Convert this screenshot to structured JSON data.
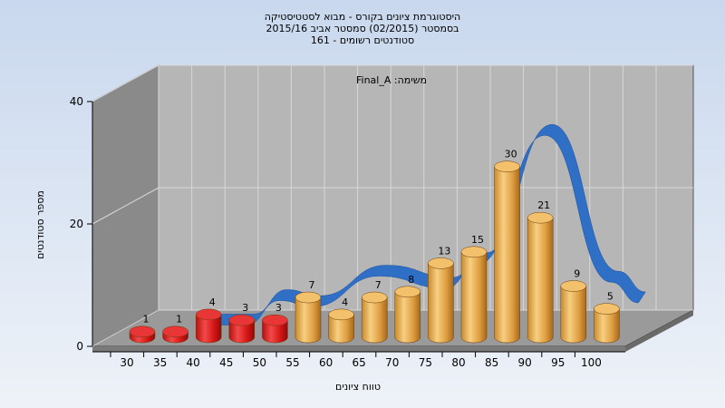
{
  "chart_data": {
    "type": "bar",
    "title_lines": [
      "היסטוגרמת ציונים בקורס - מבוא לסטטיסטיקה",
      "בסמסטר  (02/2015)  סמסטר אביב 2015/16",
      "סטודנטים רשומים - 161"
    ],
    "task_label": "משימה: Final_A",
    "xlabel": "טווח ציונים",
    "ylabel": "מספר סטודנטים",
    "categories": [
      "30",
      "35",
      "40",
      "45",
      "50",
      "55",
      "60",
      "65",
      "70",
      "75",
      "80",
      "85",
      "90",
      "95",
      "100"
    ],
    "values": [
      1,
      1,
      4,
      3,
      3,
      7,
      4,
      7,
      8,
      13,
      15,
      30,
      21,
      9,
      5
    ],
    "bar_colors": [
      "#d81616",
      "#d81616",
      "#d81616",
      "#d81616",
      "#d81616",
      "#e1a445",
      "#e1a445",
      "#e1a445",
      "#e1a445",
      "#e1a445",
      "#e1a445",
      "#e1a445",
      "#e1a445",
      "#e1a445",
      "#e1a445"
    ],
    "curve_values": [
      null,
      null,
      2,
      2,
      6,
      5,
      null,
      10,
      null,
      8,
      12,
      null,
      33,
      null,
      9
    ],
    "curve_color": "#2f6fc6",
    "y_ticks": [
      0,
      20,
      40
    ],
    "ylim": [
      0,
      40
    ],
    "grid": true
  }
}
